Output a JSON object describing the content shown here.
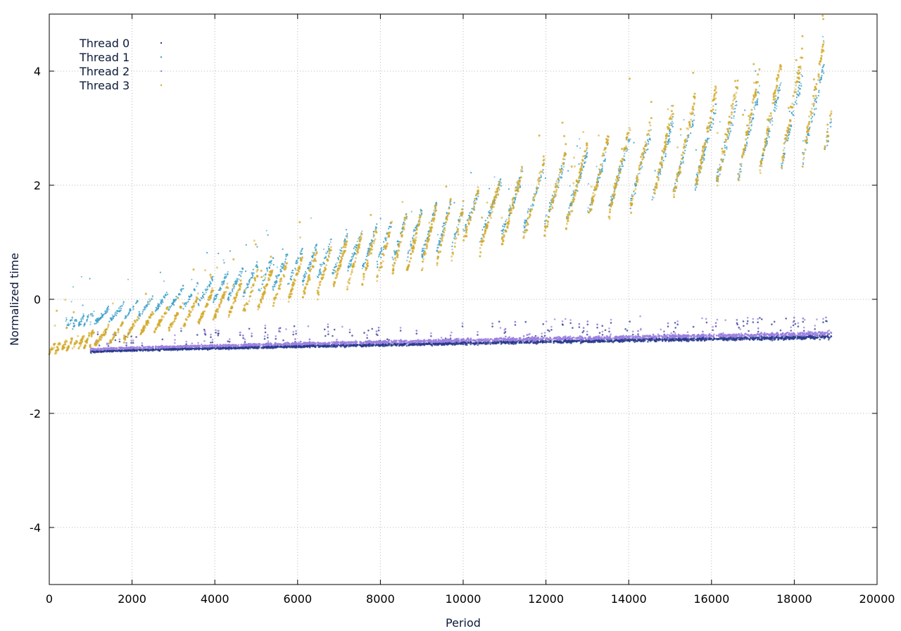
{
  "chart_data": {
    "type": "scatter",
    "title": "",
    "xlabel": "Period",
    "ylabel": "Normalized time",
    "xlim": [
      0,
      20000
    ],
    "ylim": [
      -5,
      5
    ],
    "xticks": [
      0,
      2000,
      4000,
      6000,
      8000,
      10000,
      12000,
      14000,
      16000,
      18000,
      20000
    ],
    "yticks": [
      -4,
      -2,
      0,
      2,
      4
    ],
    "grid": true,
    "legend_position": "top-left",
    "series": [
      {
        "name": "Thread 0",
        "color": "#2a3a8c",
        "pattern": "low-band",
        "x_range": [
          1000,
          18900
        ],
        "y_start": -0.92,
        "y_end": -0.66
      },
      {
        "name": "Thread 1",
        "color": "#3a9ec8",
        "pattern": "sawtooth",
        "x_range": [
          400,
          18900
        ],
        "y_start": -0.5,
        "y_end": 3.8
      },
      {
        "name": "Thread 2",
        "color": "#9b7fe0",
        "pattern": "low-band",
        "x_range": [
          1000,
          18900
        ],
        "y_start": -0.88,
        "y_end": -0.6
      },
      {
        "name": "Thread 3",
        "color": "#d4a92a",
        "pattern": "sawtooth",
        "x_range": [
          0,
          18900
        ],
        "y_start": -0.95,
        "y_end": 4.0
      }
    ]
  }
}
